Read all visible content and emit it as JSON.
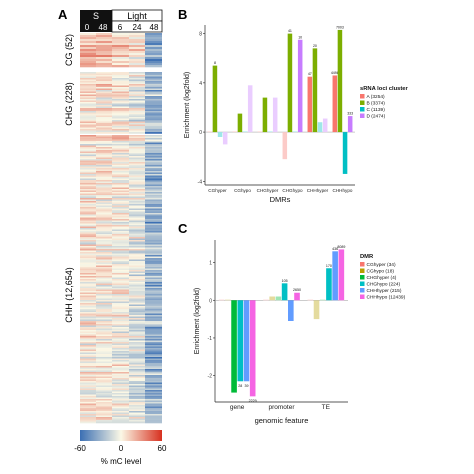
{
  "panel_a": {
    "letter": "A",
    "header": {
      "dark_label": "S",
      "light_label": "Light",
      "timepoints": [
        "0",
        "48",
        "6",
        "24",
        "48"
      ]
    },
    "row_groups": [
      "CG (52)",
      "CHG (228)",
      "CHH (12,654)"
    ],
    "colorbar": {
      "ticks": [
        "-60",
        "0",
        "60"
      ],
      "label": "% mC level",
      "colors": {
        "low": "#3b6fb3",
        "mid": "#fbf8e6",
        "high": "#d7301f"
      }
    },
    "column_bias": [
      0.05,
      0.03,
      -0.02,
      -0.12,
      -0.48
    ]
  },
  "chart_data": [
    {
      "panel": "B",
      "type": "bar",
      "ylabel": "Enrichment (log2fold)",
      "xlabel": "DMRs",
      "ylim": [
        -4.3,
        8.7
      ],
      "yticks": [
        -4,
        0,
        4,
        8
      ],
      "legend_title": "sRNA loci cluster",
      "legend_position": "right",
      "categories": [
        "CGhyper",
        "CGhypo",
        "CHGhyper",
        "CHGhypo",
        "CHHhyper",
        "CHHhypo"
      ],
      "series": [
        {
          "name": "A (3254)",
          "color": "#f8766d",
          "faded": [
            true,
            true,
            true,
            true,
            false,
            false
          ],
          "values": [
            0.0,
            0.0,
            0.0,
            -2.2,
            4.5,
            4.6
          ]
        },
        {
          "name": "B (3374)",
          "color": "#7cae00",
          "faded": [
            false,
            false,
            false,
            false,
            false,
            false
          ],
          "values": [
            5.4,
            1.5,
            2.8,
            8.0,
            6.8,
            8.3
          ]
        },
        {
          "name": "C (1139)",
          "color": "#00bfc4",
          "faded": [
            true,
            true,
            true,
            true,
            true,
            false
          ],
          "values": [
            -0.4,
            0.0,
            0.0,
            0.0,
            0.8,
            -3.4
          ]
        },
        {
          "name": "D (2474)",
          "color": "#c77cff",
          "faded": [
            true,
            true,
            true,
            false,
            true,
            false
          ],
          "values": [
            -1.0,
            3.8,
            2.8,
            7.5,
            1.1,
            1.3
          ]
        }
      ],
      "bar_labels": [
        [
          "",
          "",
          "",
          "",
          "47",
          "4498"
        ],
        [
          "8",
          "",
          "",
          "41",
          "20",
          "7003"
        ],
        [
          "",
          "",
          "",
          "",
          "",
          ""
        ],
        [
          "",
          "",
          "",
          "10",
          "",
          "333"
        ]
      ]
    },
    {
      "panel": "C",
      "type": "bar",
      "ylabel": "Enrichment (log2fold)",
      "xlabel": "genomic feature",
      "ylim": [
        -2.7,
        1.6
      ],
      "yticks": [
        -2,
        -1,
        0,
        1
      ],
      "legend_title": "DMR",
      "legend_position": "right",
      "categories": [
        "gene",
        "promoter",
        "TE"
      ],
      "series": [
        {
          "name": "CGhyper (34)",
          "color": "#f8766d",
          "faded": [
            true,
            true,
            true
          ],
          "values": [
            0.0,
            0.0,
            0.0
          ]
        },
        {
          "name": "CGhypo (18)",
          "color": "#b79f00",
          "faded": [
            true,
            true,
            true
          ],
          "values": [
            0.0,
            0.1,
            -0.5
          ]
        },
        {
          "name": "CHGhyper (4)",
          "color": "#00ba38",
          "faded": [
            false,
            true,
            true
          ],
          "values": [
            -2.45,
            0.1,
            0.0
          ]
        },
        {
          "name": "CHGhypo (224)",
          "color": "#00bfc4",
          "faded": [
            false,
            false,
            false
          ],
          "values": [
            -2.15,
            0.45,
            0.85
          ]
        },
        {
          "name": "CHHhyper (215)",
          "color": "#619cff",
          "faded": [
            false,
            false,
            false
          ],
          "values": [
            -2.15,
            -0.55,
            1.3
          ]
        },
        {
          "name": "CHHhypo (12439)",
          "color": "#f564e3",
          "faded": [
            false,
            false,
            false
          ],
          "values": [
            -2.55,
            0.2,
            1.35
          ]
        }
      ],
      "bar_labels": [
        [
          "",
          "",
          ""
        ],
        [
          "",
          "",
          ""
        ],
        [
          "",
          "",
          ""
        ],
        [
          "28",
          "105",
          "170"
        ],
        [
          "39",
          "",
          "436"
        ],
        [
          "2229",
          "2650",
          "8089"
        ]
      ]
    }
  ]
}
